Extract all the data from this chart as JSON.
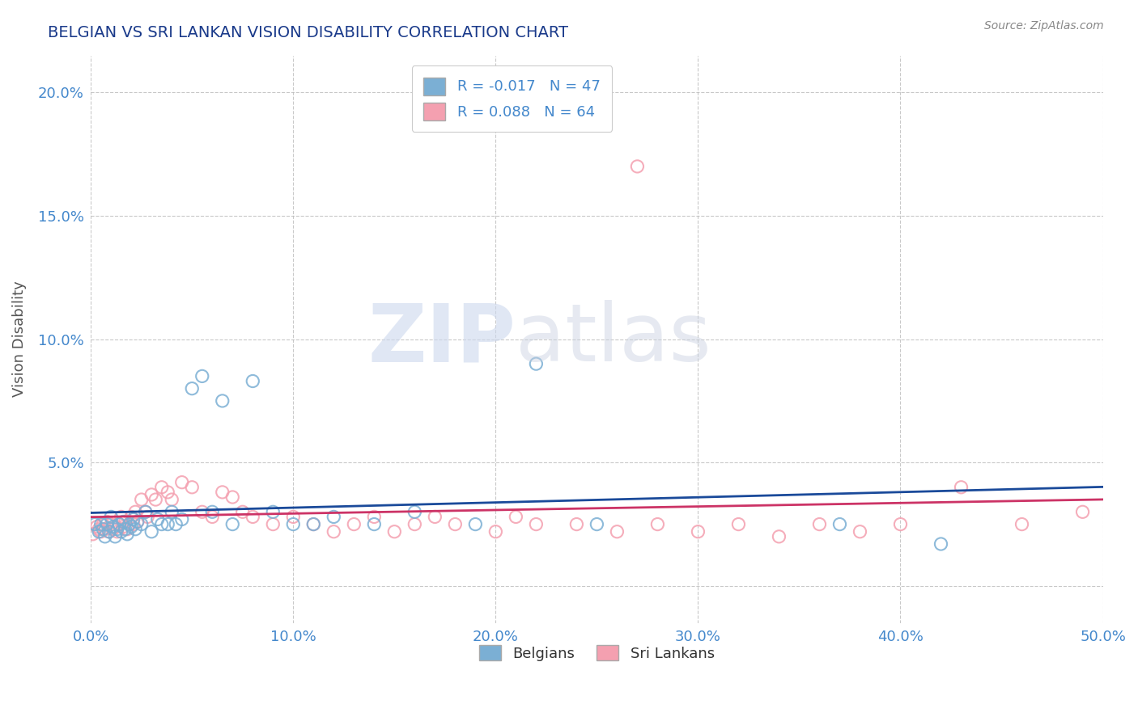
{
  "title": "BELGIAN VS SRI LANKAN VISION DISABILITY CORRELATION CHART",
  "source": "Source: ZipAtlas.com",
  "ylabel": "Vision Disability",
  "xlim": [
    0.0,
    0.5
  ],
  "ylim": [
    -0.015,
    0.215
  ],
  "yticks": [
    0.0,
    0.05,
    0.1,
    0.15,
    0.2
  ],
  "ytick_labels": [
    "",
    "5.0%",
    "10.0%",
    "15.0%",
    "20.0%"
  ],
  "xticks": [
    0.0,
    0.1,
    0.2,
    0.3,
    0.4,
    0.5
  ],
  "xtick_labels": [
    "0.0%",
    "10.0%",
    "20.0%",
    "30.0%",
    "40.0%",
    "50.0%"
  ],
  "belgian_color": "#7bafd4",
  "srilankan_color": "#f4a0b0",
  "belgian_line_color": "#1a4a9a",
  "srilankan_line_color": "#cc3366",
  "belgian_R": -0.017,
  "belgian_N": 47,
  "srilankan_R": 0.088,
  "srilankan_N": 64,
  "title_color": "#1a3a8a",
  "tick_color": "#4488cc",
  "grid_color": "#bbbbbb",
  "belgian_scatter_x": [
    0.002,
    0.004,
    0.005,
    0.006,
    0.007,
    0.008,
    0.009,
    0.01,
    0.011,
    0.012,
    0.013,
    0.014,
    0.015,
    0.016,
    0.017,
    0.018,
    0.019,
    0.02,
    0.021,
    0.022,
    0.023,
    0.025,
    0.027,
    0.03,
    0.033,
    0.035,
    0.038,
    0.04,
    0.042,
    0.045,
    0.05,
    0.055,
    0.06,
    0.065,
    0.07,
    0.08,
    0.09,
    0.1,
    0.11,
    0.12,
    0.14,
    0.16,
    0.19,
    0.22,
    0.25,
    0.37,
    0.42
  ],
  "belgian_scatter_y": [
    0.025,
    0.022,
    0.025,
    0.023,
    0.02,
    0.025,
    0.022,
    0.028,
    0.024,
    0.02,
    0.023,
    0.025,
    0.022,
    0.026,
    0.023,
    0.021,
    0.025,
    0.024,
    0.027,
    0.023,
    0.026,
    0.025,
    0.03,
    0.022,
    0.027,
    0.025,
    0.025,
    0.03,
    0.025,
    0.027,
    0.08,
    0.085,
    0.03,
    0.075,
    0.025,
    0.083,
    0.03,
    0.025,
    0.025,
    0.028,
    0.025,
    0.03,
    0.025,
    0.09,
    0.025,
    0.025,
    0.017
  ],
  "srilankan_scatter_x": [
    0.001,
    0.003,
    0.004,
    0.005,
    0.006,
    0.007,
    0.008,
    0.009,
    0.01,
    0.011,
    0.012,
    0.013,
    0.014,
    0.015,
    0.016,
    0.017,
    0.018,
    0.019,
    0.02,
    0.021,
    0.022,
    0.023,
    0.025,
    0.027,
    0.028,
    0.03,
    0.032,
    0.035,
    0.038,
    0.04,
    0.045,
    0.05,
    0.055,
    0.06,
    0.065,
    0.07,
    0.075,
    0.08,
    0.09,
    0.1,
    0.11,
    0.12,
    0.13,
    0.14,
    0.15,
    0.16,
    0.17,
    0.18,
    0.2,
    0.21,
    0.22,
    0.24,
    0.26,
    0.28,
    0.3,
    0.32,
    0.34,
    0.36,
    0.38,
    0.4,
    0.43,
    0.46,
    0.49,
    0.27
  ],
  "srilankan_scatter_y": [
    0.021,
    0.024,
    0.023,
    0.022,
    0.025,
    0.023,
    0.026,
    0.022,
    0.025,
    0.023,
    0.024,
    0.022,
    0.025,
    0.028,
    0.024,
    0.026,
    0.023,
    0.025,
    0.028,
    0.025,
    0.03,
    0.026,
    0.035,
    0.03,
    0.028,
    0.037,
    0.035,
    0.04,
    0.038,
    0.035,
    0.042,
    0.04,
    0.03,
    0.028,
    0.038,
    0.036,
    0.03,
    0.028,
    0.025,
    0.028,
    0.025,
    0.022,
    0.025,
    0.028,
    0.022,
    0.025,
    0.028,
    0.025,
    0.022,
    0.028,
    0.025,
    0.025,
    0.022,
    0.025,
    0.022,
    0.025,
    0.02,
    0.025,
    0.022,
    0.025,
    0.04,
    0.025,
    0.03,
    0.17
  ]
}
